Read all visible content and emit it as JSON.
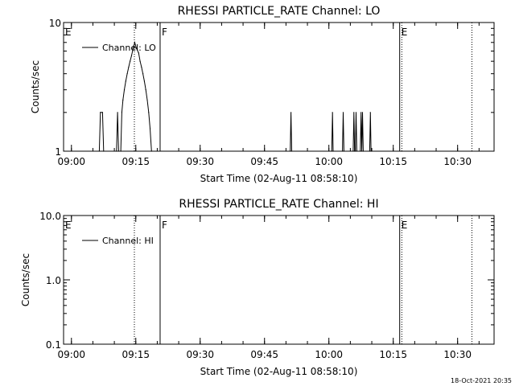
{
  "chart_data": [
    {
      "type": "line",
      "title": "RHESSI PARTICLE_RATE Channel: LO",
      "xlabel": "Start Time (02-Aug-11 08:58:10)",
      "ylabel": "Counts/sec",
      "yscale": "log",
      "ylim": [
        1,
        10
      ],
      "ytick_labels": [
        "1",
        "10"
      ],
      "xlim": [
        "08:58:10",
        "10:38:30"
      ],
      "xtick_labels": [
        "09:00",
        "09:15",
        "09:30",
        "09:45",
        "10:00",
        "10:15",
        "10:30"
      ],
      "legend": {
        "label": "Channel: LO",
        "placement": "top-left"
      },
      "grid": false,
      "color": "#000000",
      "markers": [
        {
          "time": "08:58:10",
          "label": "E",
          "style": "solid"
        },
        {
          "time": "09:14:40",
          "label": "",
          "style": "dotted"
        },
        {
          "time": "09:20:40",
          "label": "F",
          "style": "solid"
        },
        {
          "time": "10:16:30",
          "label": "E",
          "style": "solid"
        },
        {
          "time": "10:17:00",
          "label": "",
          "style": "dotted"
        },
        {
          "time": "10:33:20",
          "label": "",
          "style": "dotted"
        }
      ],
      "series": [
        {
          "name": "Channel: LO",
          "points": [
            [
              "09:06:30",
              1
            ],
            [
              "09:06:45",
              2
            ],
            [
              "09:07:15",
              2
            ],
            [
              "09:07:30",
              1
            ],
            [
              "09:10:30",
              1
            ],
            [
              "09:10:45",
              2
            ],
            [
              "09:11:00",
              1
            ],
            [
              "09:11:30",
              1
            ],
            [
              "09:11:45",
              2
            ],
            [
              "09:12:00",
              2.5
            ],
            [
              "09:12:20",
              3
            ],
            [
              "09:12:40",
              3.5
            ],
            [
              "09:13:00",
              4
            ],
            [
              "09:13:20",
              4.5
            ],
            [
              "09:13:40",
              5
            ],
            [
              "09:14:00",
              5.5
            ],
            [
              "09:14:20",
              6.2
            ],
            [
              "09:14:45",
              7
            ],
            [
              "09:15:10",
              6.3
            ],
            [
              "09:15:40",
              5.8
            ],
            [
              "09:16:00",
              5
            ],
            [
              "09:16:20",
              4.5
            ],
            [
              "09:16:40",
              4
            ],
            [
              "09:17:00",
              3.5
            ],
            [
              "09:17:20",
              3
            ],
            [
              "09:17:40",
              2.5
            ],
            [
              "09:18:00",
              2
            ],
            [
              "09:18:20",
              1.5
            ],
            [
              "09:18:40",
              1
            ],
            [
              "09:51:00",
              1
            ],
            [
              "09:51:10",
              2
            ],
            [
              "09:51:20",
              1
            ],
            [
              "10:00:40",
              1
            ],
            [
              "10:00:50",
              2
            ],
            [
              "10:01:00",
              1
            ],
            [
              "10:03:10",
              1
            ],
            [
              "10:03:20",
              2
            ],
            [
              "10:03:30",
              1
            ],
            [
              "10:05:40",
              1
            ],
            [
              "10:05:50",
              2
            ],
            [
              "10:06:00",
              1
            ],
            [
              "10:06:10",
              1
            ],
            [
              "10:06:20",
              2
            ],
            [
              "10:06:30",
              1
            ],
            [
              "10:07:20",
              1
            ],
            [
              "10:07:30",
              2
            ],
            [
              "10:07:40",
              1
            ],
            [
              "10:07:50",
              2
            ],
            [
              "10:08:00",
              1
            ],
            [
              "10:09:30",
              1
            ],
            [
              "10:09:40",
              2
            ],
            [
              "10:09:50",
              1
            ]
          ]
        }
      ]
    },
    {
      "type": "line",
      "title": "RHESSI PARTICLE_RATE Channel: HI",
      "xlabel": "Start Time (02-Aug-11 08:58:10)",
      "ylabel": "Counts/sec",
      "yscale": "log",
      "ylim": [
        0.1,
        10
      ],
      "ytick_labels": [
        "0.1",
        "1.0",
        "10.0"
      ],
      "xlim": [
        "08:58:10",
        "10:38:30"
      ],
      "xtick_labels": [
        "09:00",
        "09:15",
        "09:30",
        "09:45",
        "10:00",
        "10:15",
        "10:30"
      ],
      "legend": {
        "label": "Channel: HI",
        "placement": "top-left"
      },
      "grid": false,
      "color": "#000000",
      "markers": [
        {
          "time": "08:58:10",
          "label": "E",
          "style": "solid"
        },
        {
          "time": "09:14:40",
          "label": "",
          "style": "dotted"
        },
        {
          "time": "09:20:40",
          "label": "F",
          "style": "solid"
        },
        {
          "time": "10:16:30",
          "label": "E",
          "style": "solid"
        },
        {
          "time": "10:17:00",
          "label": "",
          "style": "dotted"
        },
        {
          "time": "10:33:20",
          "label": "",
          "style": "dotted"
        }
      ],
      "series": [
        {
          "name": "Channel: HI",
          "points": []
        }
      ]
    }
  ],
  "footer": {
    "timestamp": "18-Oct-2021 20:35"
  }
}
